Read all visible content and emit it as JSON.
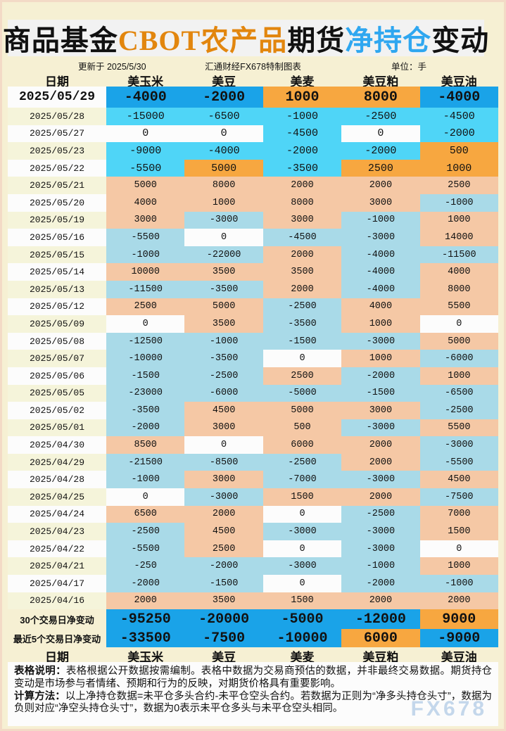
{
  "page": {
    "title_segments": [
      {
        "text": "商品基金",
        "color": "#111111"
      },
      {
        "text": "CBOT农产品",
        "color": "#E2860E"
      },
      {
        "text": "期货",
        "color": "#111111"
      },
      {
        "text": "净持仓",
        "color": "#2FA7F0"
      },
      {
        "text": "变动",
        "color": "#111111"
      }
    ],
    "meta": {
      "updated": "更新于 2025/5/30",
      "source": "汇通财经FX678特制图表",
      "unit": "单位：手"
    },
    "columns": [
      "日期",
      "美玉米",
      "美豆",
      "美麦",
      "美豆粕",
      "美豆油"
    ],
    "summary_rows": [
      {
        "label": "30个交易日净变动",
        "values": [
          -95250,
          -20000,
          -5000,
          -12000,
          9000
        ]
      },
      {
        "label": "最近5个交易日净变动",
        "values": [
          -33500,
          -7500,
          -10000,
          6000,
          -9000
        ]
      }
    ],
    "notes": [
      {
        "label": "表格说明：",
        "text": "表格根据公开数据按需编制。表格中数据为交易商预估的数据，并非最终交易数据。期货持仓变动是市场参与者情绪、预期和行为的反映，对期货价格具有重要影响。"
      },
      {
        "label": "计算方法：",
        "text": "以上净持仓数据=未平仓多头合约-未平仓空头合约。若数据为正则为“净多头持仓头寸”，数据为负则对应“净空头持仓头寸”，数据为0表示未平仓多头与未平仓空头相同。"
      }
    ],
    "watermark": "FX678",
    "colors": {
      "page_bg": "#F6F0D3",
      "title_box_bg": "#F2F2F2",
      "deep_blue": "#1AA3E8",
      "bright_cyan": "#4FD5F7",
      "muted_blue": "#A9DAE8",
      "bright_orange": "#F7A740",
      "muted_salmon": "#F5C8A5",
      "zero_bg": "#FCFCFC",
      "date_odd_bg": "#F5F4DA",
      "date_even_bg": "#FCFCFC",
      "watermark": "#C4D7EB"
    }
  },
  "chart_data": {
    "type": "table",
    "title": "商品基金CBOT农产品期货净持仓变动",
    "updated": "2025/5/30",
    "unit": "手",
    "columns": [
      "日期",
      "美玉米",
      "美豆",
      "美麦",
      "美豆粕",
      "美豆油"
    ],
    "rows": [
      [
        "2025/05/29",
        -4000,
        -2000,
        1000,
        8000,
        -4000
      ],
      [
        "2025/05/28",
        -15000,
        -6500,
        -1000,
        -2500,
        -4500
      ],
      [
        "2025/05/27",
        0,
        0,
        -4500,
        0,
        -2000
      ],
      [
        "2025/05/23",
        -9000,
        -4000,
        -2000,
        -2000,
        500
      ],
      [
        "2025/05/22",
        -5500,
        5000,
        -3500,
        2500,
        1000
      ],
      [
        "2025/05/21",
        5000,
        8000,
        2000,
        2000,
        2500
      ],
      [
        "2025/05/20",
        4000,
        1000,
        8000,
        3000,
        -1000
      ],
      [
        "2025/05/19",
        3000,
        -3000,
        3000,
        -1000,
        1000
      ],
      [
        "2025/05/16",
        -5500,
        0,
        -4500,
        -3000,
        14000
      ],
      [
        "2025/05/15",
        -1000,
        -22000,
        2000,
        -4000,
        -11500
      ],
      [
        "2025/05/14",
        10000,
        3500,
        3500,
        -4000,
        4000
      ],
      [
        "2025/05/13",
        -11500,
        -3500,
        2000,
        -4000,
        8000
      ],
      [
        "2025/05/12",
        2500,
        5000,
        -2500,
        4000,
        5500
      ],
      [
        "2025/05/09",
        0,
        3500,
        -3500,
        1000,
        0
      ],
      [
        "2025/05/08",
        -12500,
        -1000,
        -1500,
        -3000,
        5000
      ],
      [
        "2025/05/07",
        -10000,
        -3500,
        0,
        1000,
        -6000
      ],
      [
        "2025/05/06",
        -1500,
        -2500,
        2500,
        -2000,
        1000
      ],
      [
        "2025/05/05",
        -23000,
        -6000,
        -5000,
        -1500,
        -6500
      ],
      [
        "2025/05/02",
        -3500,
        4500,
        5000,
        3000,
        -2500
      ],
      [
        "2025/05/01",
        -2000,
        3000,
        500,
        -3000,
        5500
      ],
      [
        "2025/04/30",
        8500,
        0,
        6000,
        2000,
        -3000
      ],
      [
        "2025/04/29",
        -21500,
        -8500,
        -2500,
        2000,
        -5500
      ],
      [
        "2025/04/28",
        -1000,
        3000,
        -7000,
        -3000,
        4500
      ],
      [
        "2025/04/25",
        0,
        -3000,
        1500,
        2000,
        -7500
      ],
      [
        "2025/04/24",
        6500,
        2000,
        0,
        -2500,
        7000
      ],
      [
        "2025/04/23",
        -2500,
        4500,
        -3000,
        -3000,
        1500
      ],
      [
        "2025/04/22",
        -5500,
        2500,
        0,
        -3000,
        0
      ],
      [
        "2025/04/21",
        -250,
        -2000,
        -3000,
        -1000,
        1000
      ],
      [
        "2025/04/17",
        -2000,
        -1500,
        0,
        -2000,
        -1000
      ],
      [
        "2025/04/16",
        2000,
        3500,
        1500,
        2000,
        2000
      ]
    ],
    "summary": [
      {
        "label": "30个交易日净变动",
        "values": [
          -95250,
          -20000,
          -5000,
          -12000,
          9000
        ]
      },
      {
        "label": "最近5个交易日净变动",
        "values": [
          -33500,
          -7500,
          -10000,
          6000,
          -9000
        ]
      }
    ],
    "legend_note": "正值=净多头(橙色)，负值=净空头(蓝色)，0=白色；最新1日与最近5日使用高亮色"
  }
}
